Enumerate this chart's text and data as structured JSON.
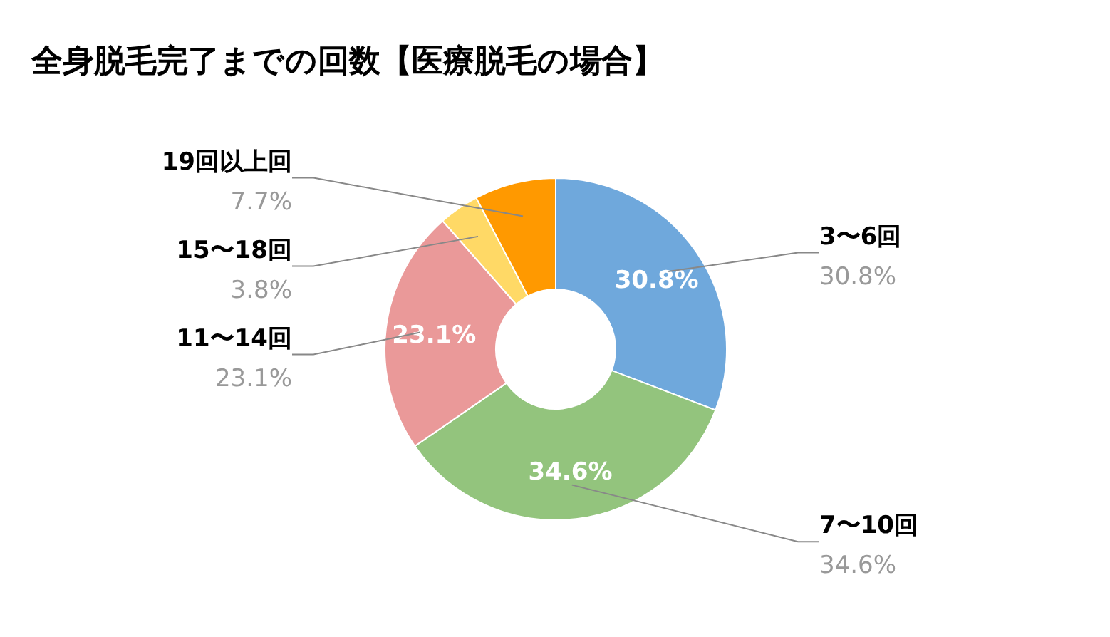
{
  "chart_data": {
    "type": "donut",
    "title": "全身脱毛完了までの回数【医療脱毛の場合】",
    "categories": [
      "3〜6回",
      "7〜10回",
      "11〜14回",
      "15〜18回",
      "19回以上回"
    ],
    "values": [
      30.8,
      34.6,
      23.1,
      3.8,
      7.7
    ],
    "colors": [
      "#6fa8dc",
      "#93c47d",
      "#ea9999",
      "#ffd966",
      "#ff9900"
    ],
    "value_labels": [
      "30.8%",
      "34.6%",
      "23.1%",
      "3.8%",
      "7.7%"
    ]
  }
}
